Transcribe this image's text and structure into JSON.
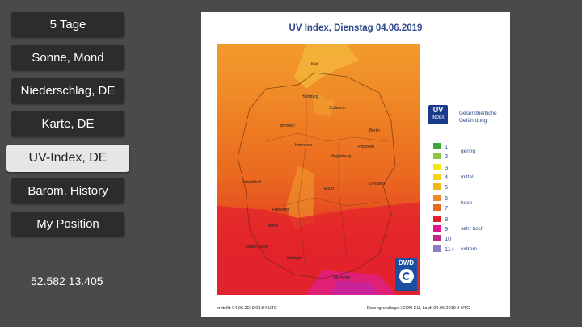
{
  "menu": {
    "items": [
      {
        "label": "5 Tage"
      },
      {
        "label": "Sonne, Mond"
      },
      {
        "label": "Niederschlag, DE"
      },
      {
        "label": "Karte, DE"
      },
      {
        "label": "UV-Index, DE"
      },
      {
        "label": "Barom. History"
      },
      {
        "label": "My Position"
      }
    ],
    "active_index": 4
  },
  "coords": "52.582 13.405",
  "panel": {
    "title": "UV Index, Dienstag 04.06.2019",
    "cities": [
      "Kiel",
      "Hamburg",
      "Schwerin",
      "Bremen",
      "Berlin",
      "Hannover",
      "Potsdam",
      "Magdeburg",
      "Düsseldorf",
      "Erfurt",
      "Dresden",
      "Frankfurt",
      "Mainz",
      "Saarbrücken",
      "Stuttgart",
      "München"
    ],
    "logo": "DWD",
    "legend": {
      "badge_title": "UV",
      "badge_sub": "INDEX",
      "heading": "Gesundheitliche Gefährdung",
      "levels": [
        {
          "value": "1",
          "color": "#3aa83a"
        },
        {
          "value": "2",
          "color": "#8cc63e"
        },
        {
          "value": "3",
          "color": "#f4e80c"
        },
        {
          "value": "4",
          "color": "#f7d417"
        },
        {
          "value": "5",
          "color": "#f2b51c"
        },
        {
          "value": "6",
          "color": "#f08a24"
        },
        {
          "value": "7",
          "color": "#ea6a20"
        },
        {
          "value": "8",
          "color": "#e0202a"
        },
        {
          "value": "9",
          "color": "#e0178a"
        },
        {
          "value": "10",
          "color": "#c02a8c"
        },
        {
          "value": "11+",
          "color": "#8a7fc0"
        }
      ],
      "categories": [
        "gering",
        "mittel",
        "hoch",
        "sehr hoch",
        "extrem"
      ]
    },
    "footer_left": "erstellt: 04.06.2019 03:54 UTC",
    "footer_right": "Datengrundlage: ICON-EU, Lauf: 04.06.2019 0 UTC"
  }
}
